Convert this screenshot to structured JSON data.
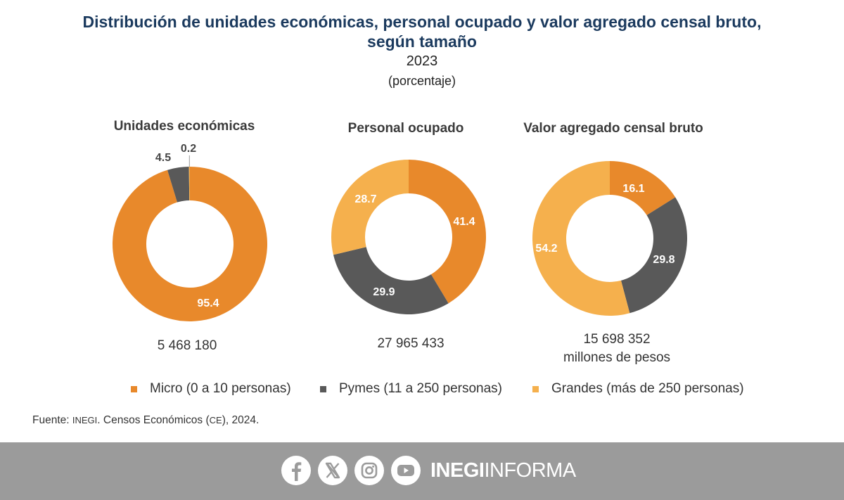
{
  "title_line1": "Distribución de unidades económicas, personal ocupado y valor agregado censal bruto,",
  "title_line2": "según tamaño",
  "year": "2023",
  "unit": "(porcentaje)",
  "colors": {
    "micro": "#E8892B",
    "pymes": "#595959",
    "grandes": "#F5B04D",
    "title": "#1B3A5E",
    "footer": "#9B9B9B"
  },
  "chart_data": [
    {
      "type": "pie",
      "title": "Unidades económicas",
      "categories": [
        "Micro (0 a 10 personas)",
        "Pymes (11 a 250 personas)",
        "Grandes (más de 250 personas)"
      ],
      "values": [
        95.4,
        4.5,
        0.2
      ],
      "labels": [
        "95.4",
        "4.5",
        "0.2"
      ],
      "total_text": [
        "5 468 180"
      ]
    },
    {
      "type": "pie",
      "title": "Personal ocupado",
      "categories": [
        "Micro (0 a 10 personas)",
        "Pymes (11 a 250 personas)",
        "Grandes (más de 250 personas)"
      ],
      "values": [
        41.4,
        29.9,
        28.7
      ],
      "labels": [
        "41.4",
        "29.9",
        "28.7"
      ],
      "total_text": [
        "27 965 433"
      ]
    },
    {
      "type": "pie",
      "title": "Valor agregado censal bruto",
      "categories": [
        "Micro (0 a 10 personas)",
        "Pymes (11 a 250 personas)",
        "Grandes (más de 250 personas)"
      ],
      "values": [
        16.1,
        29.8,
        54.2
      ],
      "labels": [
        "16.1",
        "29.8",
        "54.2"
      ],
      "total_text": [
        "15 698 352",
        "millones de pesos"
      ]
    }
  ],
  "legend": [
    "Micro (0 a 10 personas)",
    "Pymes (11 a 250 personas)",
    "Grandes (más de 250 personas)"
  ],
  "source": {
    "prefix": "Fuente: ",
    "org": "INEGI",
    "middle": ". Censos Económicos (",
    "abbr": "CE",
    "suffix": "), 2024."
  },
  "footer": {
    "brand_bold": "INEGI",
    "brand_light": "INFORMA",
    "icons": [
      "facebook-icon",
      "x-icon",
      "instagram-icon",
      "youtube-icon"
    ]
  }
}
